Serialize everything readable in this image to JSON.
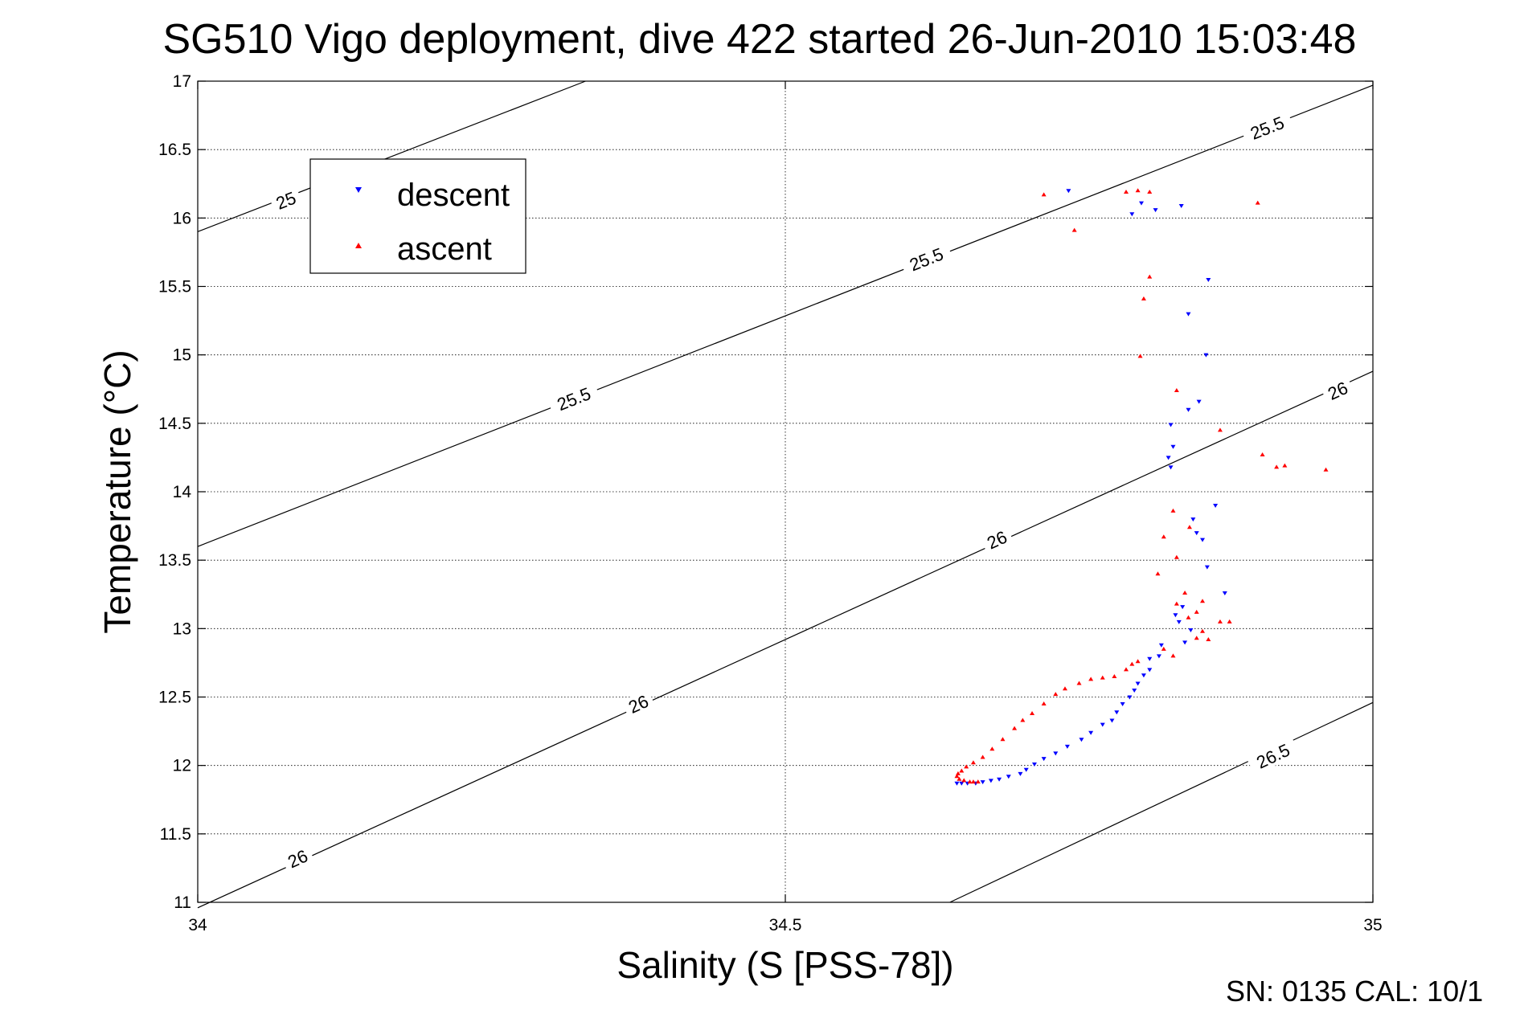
{
  "chart_data": {
    "type": "scatter",
    "title": "SG510 Vigo deployment, dive 422 started 26-Jun-2010 15:03:48",
    "xlabel": "Salinity (S [PSS-78])",
    "ylabel": "Temperature (°C)",
    "xlim": [
      34,
      35
    ],
    "ylim": [
      11,
      17
    ],
    "xticks": [
      34,
      34.5,
      35
    ],
    "xtick_labels": [
      "34",
      "34.5",
      "35"
    ],
    "yticks": [
      11,
      11.5,
      12,
      12.5,
      13,
      13.5,
      14,
      14.5,
      15,
      15.5,
      16,
      16.5,
      17
    ],
    "ytick_labels": [
      "11",
      "11.5",
      "12",
      "12.5",
      "13",
      "13.5",
      "14",
      "14.5",
      "15",
      "15.5",
      "16",
      "16.5",
      "17"
    ],
    "grid": true,
    "legend_location": "upper-left",
    "footer": "SN: 0135  CAL: 10/1",
    "contours": [
      {
        "label": "25",
        "line": [
          [
            34.0,
            15.9
          ],
          [
            34.33,
            17.0
          ]
        ],
        "labels_at": [
          [
            34.075,
            16.13
          ]
        ]
      },
      {
        "label": "25.5",
        "line": [
          [
            34.0,
            13.6
          ],
          [
            35.0,
            16.97
          ]
        ],
        "labels_at": [
          [
            34.32,
            14.68
          ],
          [
            34.62,
            15.7
          ],
          [
            34.91,
            16.66
          ]
        ]
      },
      {
        "label": "26",
        "line": [
          [
            34.0,
            10.96
          ],
          [
            35.0,
            14.88
          ]
        ],
        "labels_at": [
          [
            34.085,
            11.32
          ],
          [
            34.375,
            12.45
          ],
          [
            34.68,
            13.65
          ],
          [
            34.97,
            14.74
          ]
        ]
      },
      {
        "label": "26.5",
        "line": [
          [
            34.64,
            11.0
          ],
          [
            35.0,
            12.46
          ]
        ],
        "labels_at": [
          [
            34.915,
            12.07
          ]
        ]
      }
    ],
    "series": [
      {
        "name": "descent",
        "color": "#0000ff",
        "marker": "triangle-down",
        "points": [
          [
            34.741,
            16.2
          ],
          [
            34.795,
            16.03
          ],
          [
            34.803,
            16.11
          ],
          [
            34.815,
            16.06
          ],
          [
            34.837,
            16.09
          ],
          [
            34.86,
            15.55
          ],
          [
            34.843,
            15.3
          ],
          [
            34.858,
            15.0
          ],
          [
            34.852,
            14.66
          ],
          [
            34.843,
            14.6
          ],
          [
            34.828,
            14.49
          ],
          [
            34.83,
            14.33
          ],
          [
            34.826,
            14.25
          ],
          [
            34.828,
            14.18
          ],
          [
            34.866,
            13.9
          ],
          [
            34.847,
            13.8
          ],
          [
            34.85,
            13.7
          ],
          [
            34.855,
            13.65
          ],
          [
            34.859,
            13.45
          ],
          [
            34.874,
            13.26
          ],
          [
            34.832,
            13.1
          ],
          [
            34.838,
            13.16
          ],
          [
            34.835,
            13.05
          ],
          [
            34.84,
            12.9
          ],
          [
            34.845,
            12.99
          ],
          [
            34.82,
            12.88
          ],
          [
            34.818,
            12.8
          ],
          [
            34.81,
            12.78
          ],
          [
            34.81,
            12.7
          ],
          [
            34.805,
            12.66
          ],
          [
            34.8,
            12.6
          ],
          [
            34.797,
            12.55
          ],
          [
            34.793,
            12.5
          ],
          [
            34.787,
            12.45
          ],
          [
            34.782,
            12.39
          ],
          [
            34.778,
            12.33
          ],
          [
            34.77,
            12.3
          ],
          [
            34.76,
            12.24
          ],
          [
            34.752,
            12.19
          ],
          [
            34.74,
            12.14
          ],
          [
            34.73,
            12.09
          ],
          [
            34.72,
            12.05
          ],
          [
            34.712,
            12.01
          ],
          [
            34.705,
            11.97
          ],
          [
            34.7,
            11.94
          ],
          [
            34.69,
            11.92
          ],
          [
            34.682,
            11.9
          ],
          [
            34.675,
            11.89
          ],
          [
            34.668,
            11.88
          ],
          [
            34.662,
            11.87
          ],
          [
            34.655,
            11.87
          ],
          [
            34.65,
            11.87
          ],
          [
            34.646,
            11.87
          ]
        ]
      },
      {
        "name": "ascent",
        "color": "#ff0000",
        "marker": "triangle-up",
        "points": [
          [
            34.72,
            16.17
          ],
          [
            34.8,
            16.2
          ],
          [
            34.79,
            16.19
          ],
          [
            34.81,
            16.19
          ],
          [
            34.902,
            16.11
          ],
          [
            34.746,
            15.91
          ],
          [
            34.81,
            15.57
          ],
          [
            34.805,
            15.41
          ],
          [
            34.802,
            14.99
          ],
          [
            34.833,
            14.74
          ],
          [
            34.87,
            14.45
          ],
          [
            34.906,
            14.27
          ],
          [
            34.918,
            14.18
          ],
          [
            34.925,
            14.19
          ],
          [
            34.96,
            14.16
          ],
          [
            34.83,
            13.86
          ],
          [
            34.844,
            13.74
          ],
          [
            34.822,
            13.67
          ],
          [
            34.833,
            13.52
          ],
          [
            34.817,
            13.4
          ],
          [
            34.84,
            13.26
          ],
          [
            34.833,
            13.18
          ],
          [
            34.855,
            13.2
          ],
          [
            34.85,
            13.12
          ],
          [
            34.843,
            13.08
          ],
          [
            34.87,
            13.05
          ],
          [
            34.878,
            13.05
          ],
          [
            34.855,
            12.98
          ],
          [
            34.86,
            12.92
          ],
          [
            34.85,
            12.93
          ],
          [
            34.83,
            12.8
          ],
          [
            34.822,
            12.85
          ],
          [
            34.8,
            12.76
          ],
          [
            34.795,
            12.74
          ],
          [
            34.79,
            12.7
          ],
          [
            34.78,
            12.65
          ],
          [
            34.77,
            12.64
          ],
          [
            34.76,
            12.63
          ],
          [
            34.75,
            12.6
          ],
          [
            34.738,
            12.56
          ],
          [
            34.73,
            12.52
          ],
          [
            34.72,
            12.45
          ],
          [
            34.71,
            12.38
          ],
          [
            34.702,
            12.33
          ],
          [
            34.695,
            12.27
          ],
          [
            34.685,
            12.19
          ],
          [
            34.676,
            12.12
          ],
          [
            34.668,
            12.06
          ],
          [
            34.66,
            12.02
          ],
          [
            34.654,
            11.99
          ],
          [
            34.65,
            11.96
          ],
          [
            34.647,
            11.94
          ],
          [
            34.646,
            11.92
          ],
          [
            34.648,
            11.9
          ],
          [
            34.652,
            11.89
          ],
          [
            34.657,
            11.88
          ],
          [
            34.66,
            11.88
          ],
          [
            34.664,
            11.88
          ]
        ]
      }
    ]
  }
}
